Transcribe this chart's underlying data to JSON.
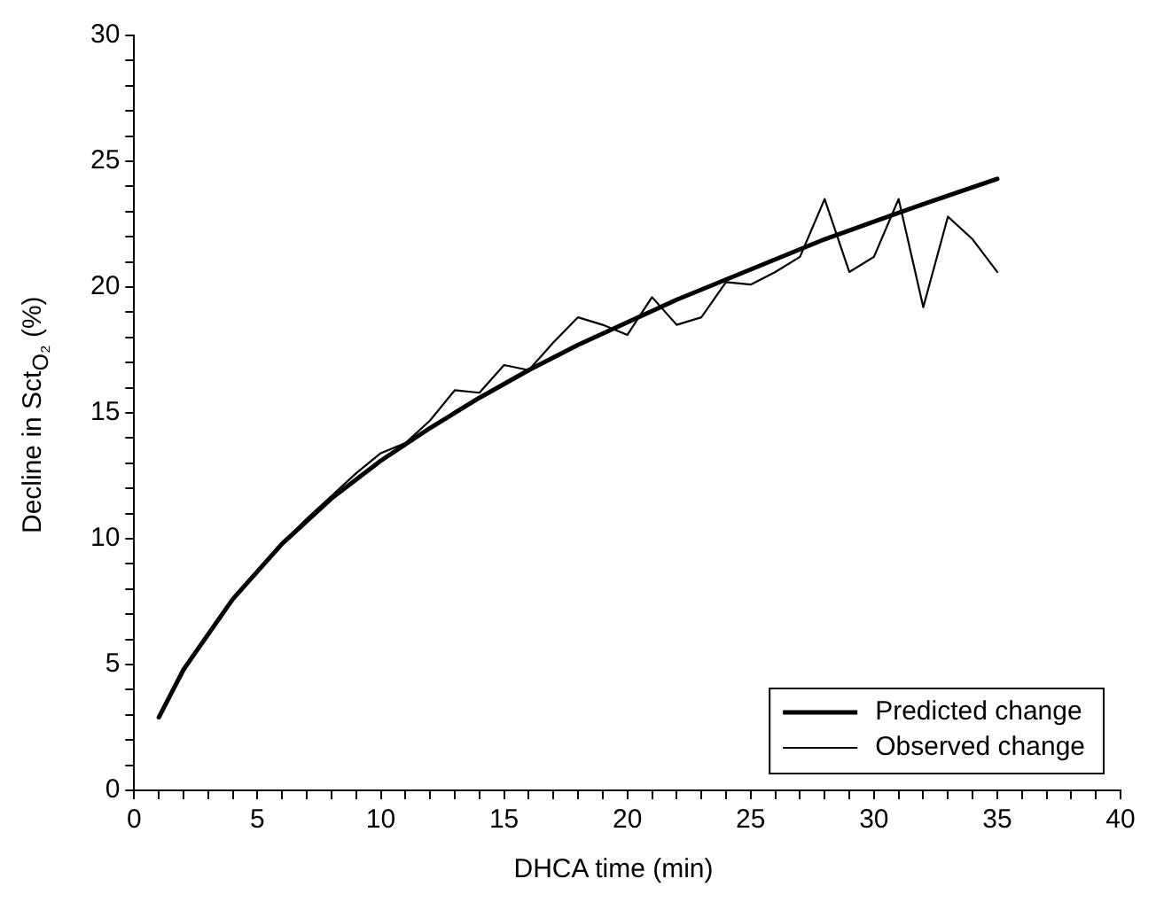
{
  "chart_data": {
    "type": "line",
    "xlabel": "DHCA time (min)",
    "ylabel": "Decline in Sct$_{O₂}$ (%)",
    "xlim": [
      0,
      40
    ],
    "ylim": [
      0,
      30
    ],
    "xticks": [
      0,
      {
        "value": 1,
        "label": null
      },
      {
        "value": 2,
        "label": null
      },
      {
        "value": 3,
        "label": null
      },
      {
        "value": 4,
        "label": null
      },
      5,
      {
        "value": 6,
        "label": null
      },
      {
        "value": 7,
        "label": null
      },
      {
        "value": 8,
        "label": null
      },
      {
        "value": 9,
        "label": null
      },
      10,
      {
        "value": 11,
        "label": null
      },
      {
        "value": 12,
        "label": null
      },
      {
        "value": 13,
        "label": null
      },
      {
        "value": 14,
        "label": null
      },
      15,
      {
        "value": 16,
        "label": null
      },
      {
        "value": 17,
        "label": null
      },
      {
        "value": 18,
        "label": null
      },
      {
        "value": 19,
        "label": null
      },
      20,
      {
        "value": 21,
        "label": null
      },
      {
        "value": 22,
        "label": null
      },
      {
        "value": 23,
        "label": null
      },
      {
        "value": 24,
        "label": null
      },
      25,
      {
        "value": 26,
        "label": null
      },
      {
        "value": 27,
        "label": null
      },
      {
        "value": 28,
        "label": null
      },
      {
        "value": 29,
        "label": null
      },
      30,
      {
        "value": 31,
        "label": null
      },
      {
        "value": 32,
        "label": null
      },
      {
        "value": 33,
        "label": null
      },
      {
        "value": 34,
        "label": null
      },
      35,
      {
        "value": 36,
        "label": null
      },
      {
        "value": 37,
        "label": null
      },
      {
        "value": 38,
        "label": null
      },
      {
        "value": 39,
        "label": null
      },
      40
    ],
    "yticks": [
      0,
      {
        "value": 1,
        "label": null
      },
      {
        "value": 2,
        "label": null
      },
      {
        "value": 3,
        "label": null
      },
      {
        "value": 4,
        "label": null
      },
      5,
      {
        "value": 6,
        "label": null
      },
      {
        "value": 7,
        "label": null
      },
      {
        "value": 8,
        "label": null
      },
      {
        "value": 9,
        "label": null
      },
      10,
      {
        "value": 11,
        "label": null
      },
      {
        "value": 12,
        "label": null
      },
      {
        "value": 13,
        "label": null
      },
      {
        "value": 14,
        "label": null
      },
      15,
      {
        "value": 16,
        "label": null
      },
      {
        "value": 17,
        "label": null
      },
      {
        "value": 18,
        "label": null
      },
      {
        "value": 19,
        "label": null
      },
      20,
      {
        "value": 21,
        "label": null
      },
      {
        "value": 22,
        "label": null
      },
      {
        "value": 23,
        "label": null
      },
      {
        "value": 24,
        "label": null
      },
      25,
      {
        "value": 26,
        "label": null
      },
      {
        "value": 27,
        "label": null
      },
      {
        "value": 28,
        "label": null
      },
      {
        "value": 29,
        "label": null
      },
      30
    ],
    "grid": false,
    "legend": "bottom right",
    "marker": "none",
    "series": [
      {
        "name": "Predicted change",
        "color": "#000000",
        "x": [
          1,
          2,
          4,
          6,
          8,
          10,
          12,
          14,
          16,
          18,
          20,
          22,
          24,
          26,
          28,
          30,
          32,
          35
        ],
        "values": [
          2.9,
          4.8,
          7.6,
          9.8,
          11.6,
          13.1,
          14.4,
          15.6,
          16.7,
          17.7,
          18.6,
          19.5,
          20.3,
          21.1,
          21.9,
          22.6,
          23.3,
          24.3
        ]
      },
      {
        "name": "Observed change",
        "color": "#000000",
        "x": [
          1,
          2,
          3,
          4,
          5,
          6,
          7,
          8,
          9,
          10,
          11,
          12,
          13,
          14,
          15,
          16,
          17,
          18,
          19,
          20,
          21,
          22,
          23,
          24,
          25,
          26,
          27,
          28,
          29,
          30,
          31,
          32,
          33,
          34,
          35
        ],
        "values": [
          2.9,
          4.7,
          6.2,
          7.6,
          8.7,
          9.8,
          10.8,
          11.7,
          12.6,
          13.4,
          13.8,
          14.7,
          15.9,
          15.8,
          16.9,
          16.7,
          17.8,
          18.8,
          18.5,
          18.1,
          19.6,
          18.5,
          18.8,
          20.2,
          20.1,
          20.6,
          21.2,
          23.5,
          20.6,
          21.2,
          23.5,
          19.2,
          22.8,
          21.9,
          20.6
        ]
      }
    ]
  }
}
